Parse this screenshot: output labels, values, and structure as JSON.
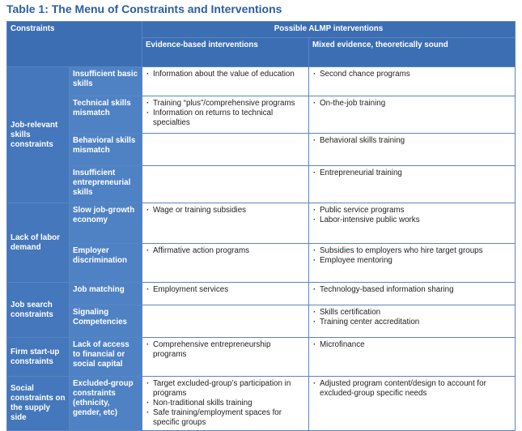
{
  "title": "Table 1: The Menu of Constraints and Interventions",
  "header": {
    "constraints": "Constraints",
    "possible": "Possible ALMP interventions",
    "evidence": "Evidence-based interventions",
    "mixed": "Mixed evidence, theoretically sound"
  },
  "groups": [
    {
      "name": "Job-relevant skills constraints",
      "rows": [
        {
          "sub": "Insufficient basic skills",
          "evidence": [
            "Information about the value of education"
          ],
          "mixed": [
            "Second chance programs"
          ]
        },
        {
          "sub": "Technical skills mismatch",
          "evidence": [
            "Training “plus”/comprehensive programs",
            "Information on returns to technical specialties"
          ],
          "mixed": [
            "On-the-job training"
          ]
        },
        {
          "sub": "Behavioral skills mismatch",
          "evidence": [],
          "mixed": [
            "Behavioral skills training"
          ]
        },
        {
          "sub": "Insufficient entrepreneurial skills",
          "evidence": [],
          "mixed": [
            "Entrepreneurial training"
          ]
        }
      ]
    },
    {
      "name": "Lack of labor demand",
      "rows": [
        {
          "sub": "Slow job-growth economy",
          "evidence": [
            "Wage or training subsidies"
          ],
          "mixed": [
            "Public service programs",
            "Labor-intensive public works"
          ]
        },
        {
          "sub": "Employer discrimination",
          "evidence": [
            "Affirmative action programs"
          ],
          "mixed": [
            "Subsidies to employers who hire target groups",
            "Employee mentoring"
          ]
        }
      ]
    },
    {
      "name": "Job search constraints",
      "rows": [
        {
          "sub": "Job matching",
          "evidence": [
            "Employment services"
          ],
          "mixed": [
            "Technology-based information sharing"
          ]
        },
        {
          "sub": "Signaling Competencies",
          "evidence": [],
          "mixed": [
            "Skills certification",
            "Training center accreditation"
          ]
        }
      ]
    },
    {
      "name": "Firm start-up constraints",
      "rows": [
        {
          "sub": "Lack of access to financial or social capital",
          "evidence": [
            "Comprehensive entrepreneurship programs"
          ],
          "mixed": [
            "Microfinance"
          ]
        }
      ]
    },
    {
      "name": "Social constraints on the supply side",
      "rows": [
        {
          "sub": "Excluded-group constraints (ethnicity, gender, etc)",
          "evidence": [
            "Target excluded-group’s participation in programs",
            "Non-traditional skills training",
            "Safe training/employment spaces for specific groups"
          ],
          "mixed": [
            "Adjusted program content/design to account for excluded-group specific needs"
          ]
        }
      ]
    }
  ]
}
